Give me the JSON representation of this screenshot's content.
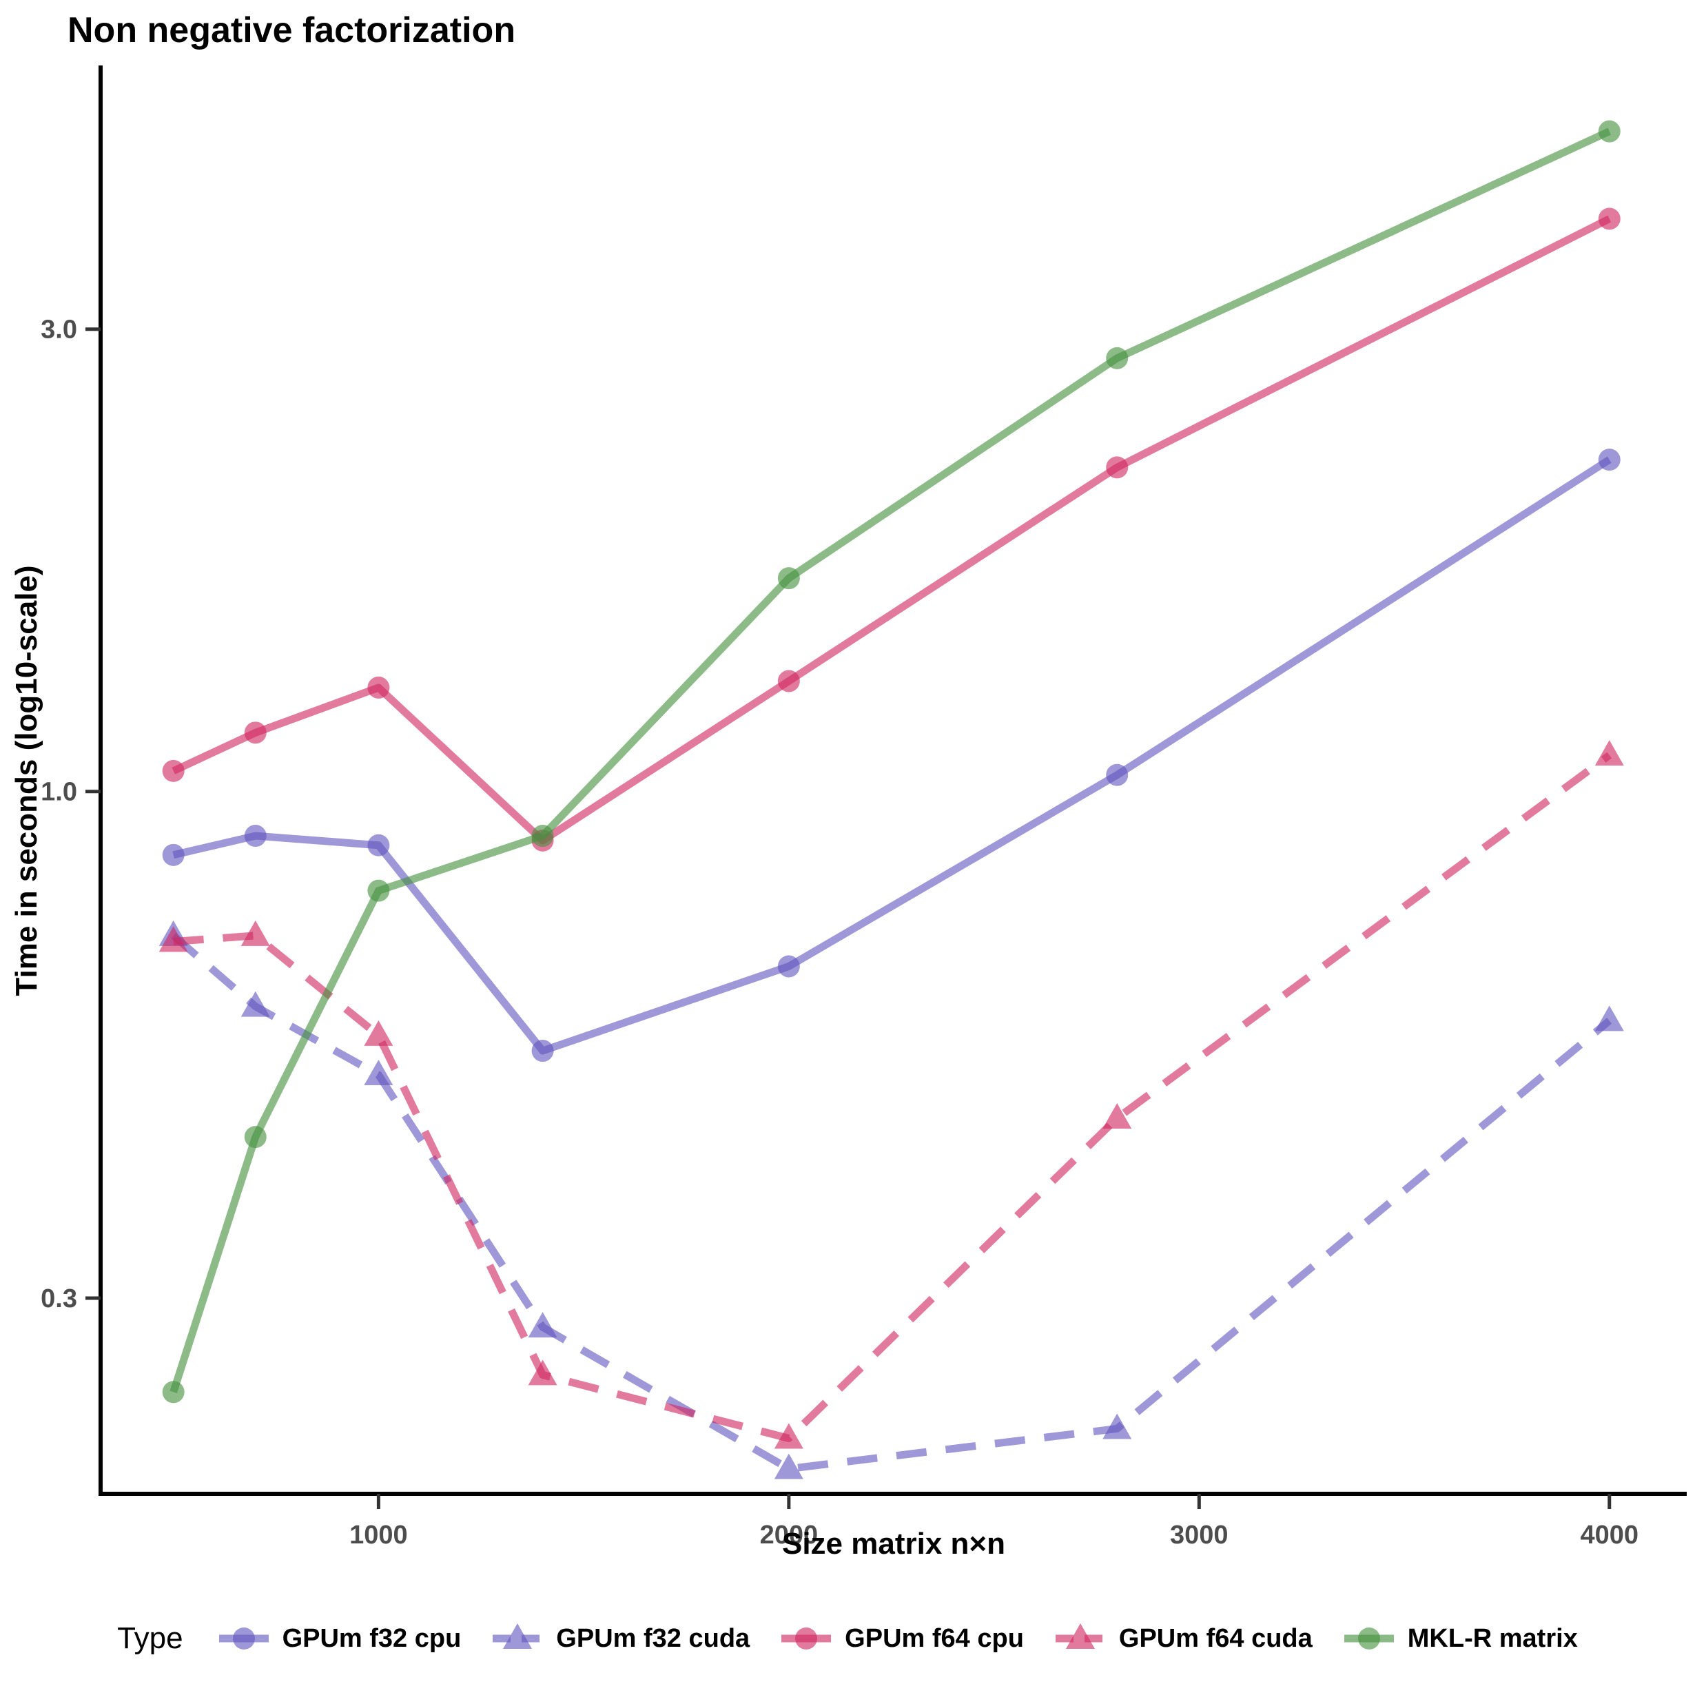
{
  "title": "Non negative factorization",
  "y_axis": {
    "label": "Time in seconds (log10-scale)",
    "tick_labels": [
      "3.0",
      "1.0",
      "0.3"
    ]
  },
  "x_axis": {
    "label": "Size matrix n×n",
    "tick_labels": [
      "1000",
      "2000",
      "3000",
      "4000"
    ]
  },
  "legend": {
    "title": "Type",
    "items": [
      "GPUm f32 cpu",
      "GPUm f32 cuda",
      "GPUm f64 cpu",
      "GPUm f64 cuda",
      "MKL-R matrix"
    ]
  },
  "chart_data": {
    "type": "line",
    "title": "Non negative factorization",
    "xlabel": "Size matrix n×n",
    "ylabel": "Time in seconds (log10-scale)",
    "x_scale": "linear",
    "y_scale": "log10",
    "grid": false,
    "legend_position": "bottom",
    "x": [
      500,
      700,
      1000,
      1400,
      2000,
      2800,
      4000
    ],
    "x_ticks": [
      1000,
      2000,
      3000,
      4000
    ],
    "y_ticks": [
      3.0,
      1.0,
      0.3
    ],
    "xlim": [
      323,
      4188
    ],
    "ylim": [
      0.19,
      5.6
    ],
    "series": [
      {
        "name": "GPUm f32 cpu",
        "color": "#6257C0",
        "line": "solid",
        "marker": "circle",
        "values": [
          0.86,
          0.9,
          0.88,
          0.54,
          0.66,
          1.04,
          2.2
        ]
      },
      {
        "name": "GPUm f32 cuda",
        "color": "#6257C0",
        "line": "dashed",
        "marker": "triangle",
        "values": [
          0.71,
          0.6,
          0.51,
          0.28,
          0.2,
          0.22,
          0.58
        ]
      },
      {
        "name": "GPUm f64 cpu",
        "color": "#D02861",
        "line": "solid",
        "marker": "circle",
        "values": [
          1.05,
          1.15,
          1.28,
          0.89,
          1.3,
          2.16,
          3.9
        ]
      },
      {
        "name": "GPUm f64 cuda",
        "color": "#D02861",
        "line": "dashed",
        "marker": "triangle",
        "values": [
          0.7,
          0.71,
          0.56,
          0.25,
          0.215,
          0.46,
          1.09
        ]
      },
      {
        "name": "MKL-R matrix",
        "color": "#45913F",
        "line": "solid",
        "marker": "circle",
        "values": [
          0.24,
          0.44,
          0.79,
          0.9,
          1.66,
          2.8,
          4.8
        ]
      }
    ]
  }
}
